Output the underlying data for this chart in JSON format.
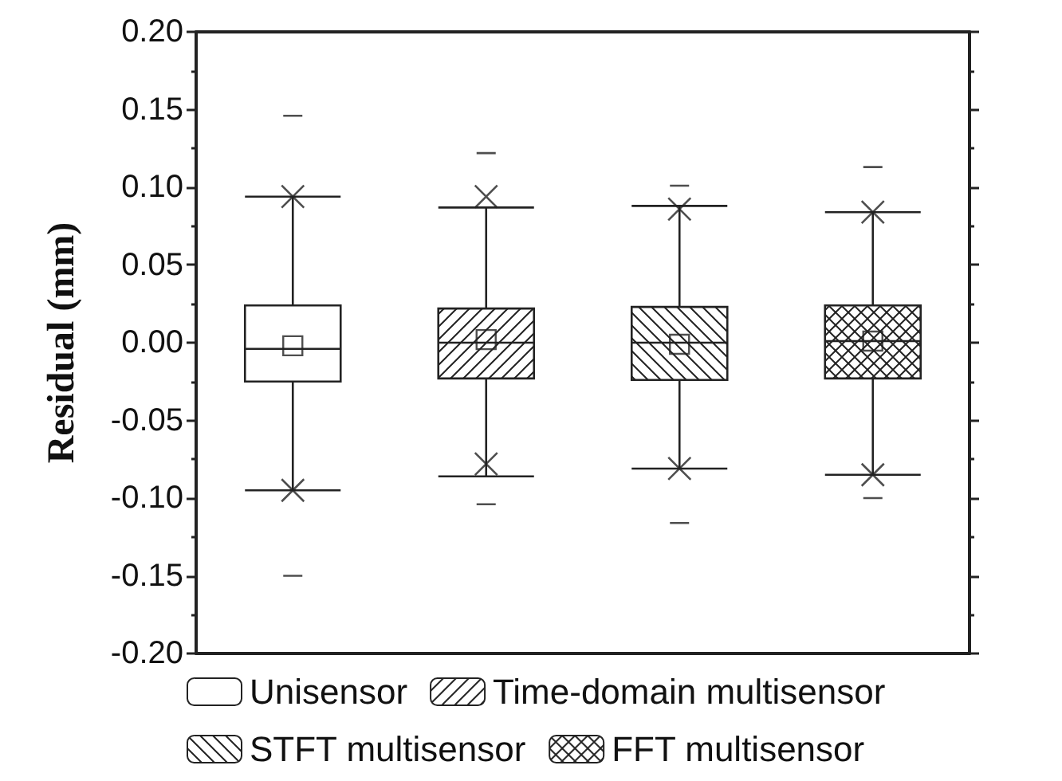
{
  "chart_data": {
    "type": "box",
    "ylabel": "Residual (mm)",
    "categories": [
      null,
      null,
      null,
      null
    ],
    "ylim": [
      -0.2,
      0.2
    ],
    "yticks": [
      {
        "value": -0.2,
        "label": "-0.20"
      },
      {
        "value": -0.15,
        "label": "-0.15"
      },
      {
        "value": -0.1,
        "label": "-0.10"
      },
      {
        "value": -0.05,
        "label": "-0.05"
      },
      {
        "value": 0,
        "label": "0.00"
      },
      {
        "value": 0.05,
        "label": "0.05"
      },
      {
        "value": 0.1,
        "label": "0.10"
      },
      {
        "value": 0.15,
        "label": "0.15"
      },
      {
        "value": 0.2,
        "label": "0.20"
      }
    ],
    "tick_labels": "y",
    "legend": "bottom",
    "marker": "square",
    "series": [
      {
        "name": "Unisensor",
        "color": "#222222",
        "boxes": [
          {
            "low": -0.095,
            "q1": -0.025,
            "median": -0.004,
            "q3": 0.024,
            "high": 0.094,
            "mean": -0.002,
            "outliers": [
              0.146,
              -0.15,
              0.094,
              -0.095
            ]
          },
          null,
          null,
          null
        ]
      },
      {
        "name": "Time-domain multisensor",
        "color": "#222222",
        "boxes": [
          null,
          {
            "low": -0.086,
            "q1": -0.023,
            "median": 0.0,
            "q3": 0.022,
            "high": 0.087,
            "mean": 0.002,
            "outliers": [
              0.122,
              -0.104,
              0.094,
              -0.078
            ]
          },
          null,
          null
        ]
      },
      {
        "name": "STFT multisensor",
        "color": "#222222",
        "boxes": [
          null,
          null,
          {
            "low": -0.081,
            "q1": -0.024,
            "median": 0.0,
            "q3": 0.023,
            "high": 0.088,
            "mean": -0.001,
            "outliers": [
              0.101,
              -0.116,
              0.086,
              -0.081
            ]
          },
          null
        ]
      },
      {
        "name": "FFT multisensor",
        "color": "#222222",
        "boxes": [
          null,
          null,
          null,
          {
            "low": -0.085,
            "q1": -0.023,
            "median": 0.001,
            "q3": 0.024,
            "high": 0.084,
            "mean": 0.001,
            "outliers": [
              0.113,
              -0.1,
              0.084,
              -0.085
            ]
          }
        ]
      }
    ]
  }
}
